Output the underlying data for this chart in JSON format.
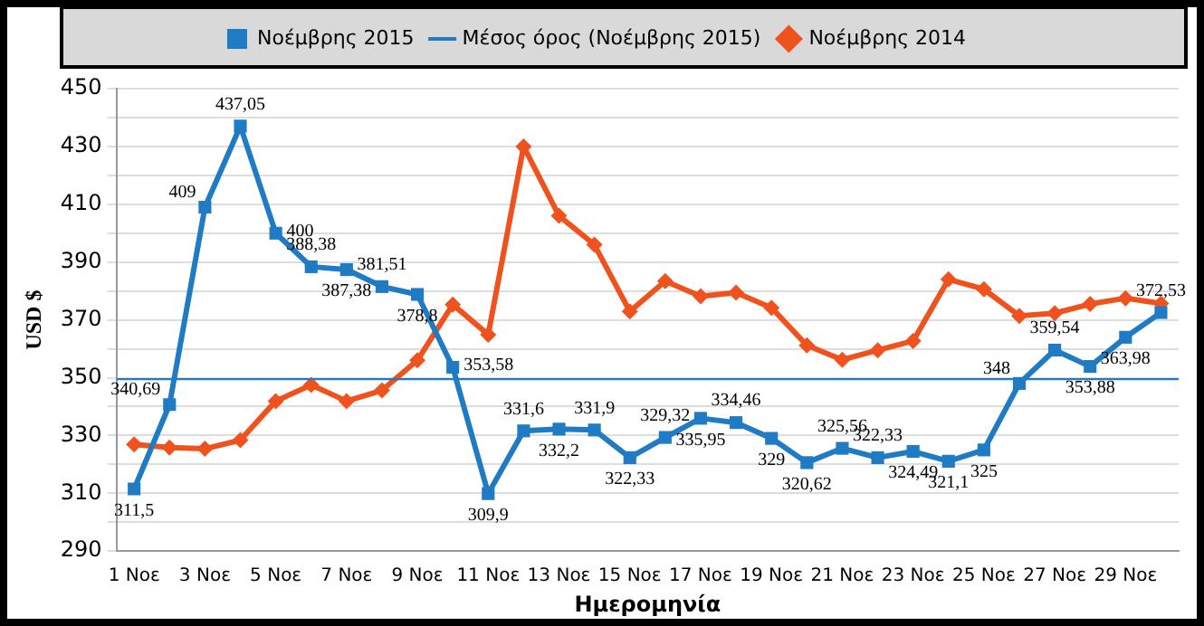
{
  "chart_data": {
    "type": "line",
    "xlabel": "Ημερομηνία",
    "ylabel": "USD $",
    "categories": [
      "1 Νοε",
      null,
      "3 Νοε",
      null,
      "5 Νοε",
      null,
      "7 Νοε",
      null,
      "9 Νοε",
      null,
      "11 Νοε",
      null,
      "13 Νοε",
      null,
      "15 Νοε",
      null,
      "17 Νοε",
      null,
      "19 Νοε",
      null,
      "21 Νοε",
      null,
      "23 Νοε",
      null,
      "25 Νοε",
      null,
      "27 Νοε",
      null,
      "29 Νοε",
      null
    ],
    "series": [
      {
        "name": "Νοέμβρης 2015",
        "color": "#1f7bc4",
        "marker": "square",
        "values": [
          311.5,
          340.69,
          409,
          437.05,
          400,
          388.38,
          387.38,
          381.51,
          378.8,
          353.58,
          309.9,
          331.6,
          332.2,
          331.9,
          322.33,
          329.32,
          335.95,
          334.46,
          329,
          320.62,
          325.56,
          322.33,
          324.49,
          321.1,
          325,
          348,
          359.54,
          353.88,
          363.98,
          372.53
        ],
        "value_labels": [
          "311,5",
          "340,69",
          "409",
          "437,05",
          "400",
          "388,38",
          "387,38",
          "381,51",
          "378,8",
          "353,58",
          "309,9",
          "331,6",
          "332,2",
          "331,9",
          "322,33",
          "329,32",
          "335,95",
          "334,46",
          "329",
          "320,62",
          "325,56",
          "322,33",
          "324,49",
          "321,1",
          "325",
          "348",
          "359,54",
          "353,88",
          "363,98",
          "372,53"
        ]
      },
      {
        "name": "Νοέμβρης 2014",
        "color": "#f0521e",
        "marker": "diamond",
        "values": [
          326.9,
          325.8,
          325.4,
          328.4,
          341.9,
          347.5,
          341.9,
          345.6,
          356,
          375.3,
          364.9,
          430,
          406,
          396,
          372.9,
          383.4,
          378.2,
          379.4,
          374.2,
          361.2,
          356.2,
          359.5,
          362.7,
          384,
          380.6,
          371.4,
          372.3,
          375.5,
          377.5,
          375.7
        ]
      }
    ],
    "ref_lines": [
      {
        "axis": "y",
        "value": 349.5,
        "label": "Μέσος όρος (Νοέμβρης 2015)",
        "color": "#1f7bc4"
      }
    ],
    "ylim": [
      290,
      450
    ],
    "yticks": [
      290,
      {
        "value": 300,
        "label": null
      },
      310,
      {
        "value": 320,
        "label": null
      },
      330,
      {
        "value": 340,
        "label": null
      },
      350,
      {
        "value": 360,
        "label": null
      },
      370,
      {
        "value": 380,
        "label": null
      },
      390,
      {
        "value": 400,
        "label": null
      },
      410,
      {
        "value": 420,
        "label": null
      },
      430,
      {
        "value": 440,
        "label": null
      },
      450
    ],
    "grid": "y",
    "legend": "top",
    "line_style": "solid"
  }
}
